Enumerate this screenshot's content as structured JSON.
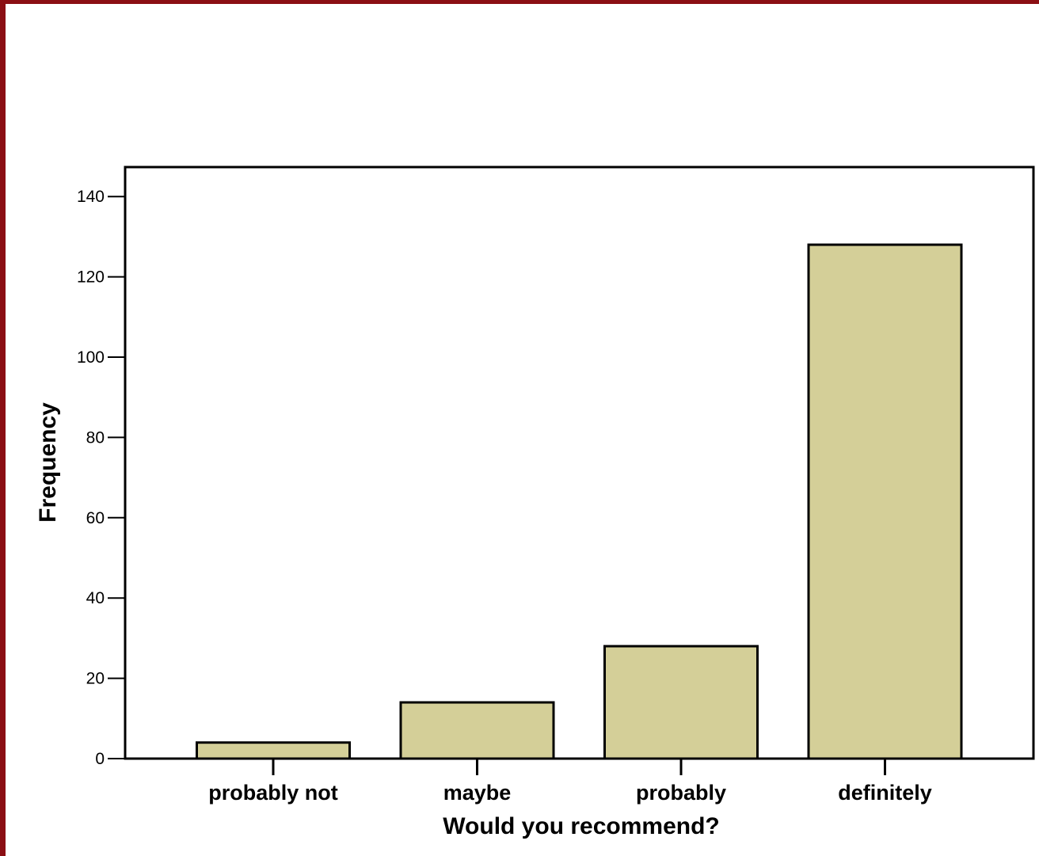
{
  "colors": {
    "border": "#8b0f14",
    "bar_fill": "#d4cf98",
    "bar_stroke": "#000000",
    "background": "#ffffff"
  },
  "chart_data": {
    "type": "bar",
    "categories": [
      "probably not",
      "maybe",
      "probably",
      "definitely"
    ],
    "values": [
      4,
      14,
      28,
      128
    ],
    "xlabel": "Would you recommend?",
    "ylabel": "Frequency",
    "ylim": [
      0,
      147
    ],
    "yticks": [
      "0",
      "20",
      "40",
      "60",
      "80",
      "100",
      "120",
      "140"
    ],
    "grid": false,
    "legend": "none"
  }
}
